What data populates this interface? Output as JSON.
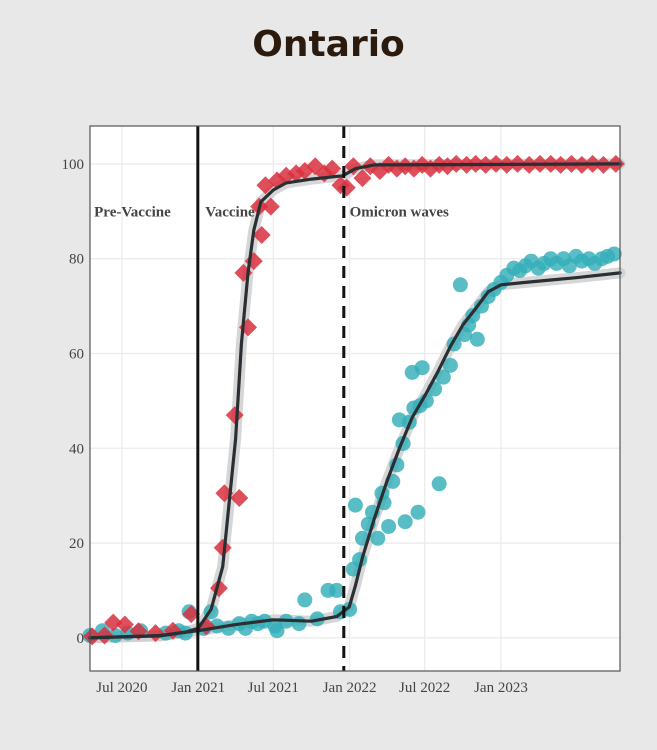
{
  "chart_data": {
    "type": "scatter",
    "title": "Ontario",
    "xlabel": "",
    "ylabel": "",
    "ylim": [
      -7,
      108
    ],
    "xlim": [
      "2020-04-15",
      "2023-10-15"
    ],
    "grid": true,
    "legend": "none",
    "x_ticks": [
      {
        "date": "2020-07-01",
        "label": "Jul 2020"
      },
      {
        "date": "2021-01-01",
        "label": "Jan 2021"
      },
      {
        "date": "2021-07-01",
        "label": "Jul 2021"
      },
      {
        "date": "2022-01-01",
        "label": "Jan 2022"
      },
      {
        "date": "2022-07-01",
        "label": "Jul 2022"
      },
      {
        "date": "2023-01-01",
        "label": "Jan 2023"
      }
    ],
    "y_ticks": [
      0,
      20,
      40,
      60,
      80,
      100
    ],
    "vlines": [
      {
        "date": "2020-12-31",
        "style": "solid"
      },
      {
        "date": "2021-12-18",
        "style": "dashed"
      }
    ],
    "regions": [
      {
        "label": "Pre-Vaccine",
        "date": "2020-04-25",
        "y": 90
      },
      {
        "label": "Vaccine",
        "date": "2021-01-18",
        "y": 90
      },
      {
        "label": "Omicron waves",
        "date": "2022-01-01",
        "y": 90
      }
    ],
    "series": [
      {
        "color": "#d9303e",
        "marker": "diamond",
        "points": [
          [
            "2020-04-20",
            0.3
          ],
          [
            "2020-05-20",
            0.5
          ],
          [
            "2020-06-10",
            3.2
          ],
          [
            "2020-07-08",
            2.8
          ],
          [
            "2020-08-10",
            1.4
          ],
          [
            "2020-09-20",
            1.0
          ],
          [
            "2020-11-01",
            1.5
          ],
          [
            "2020-12-15",
            5.0
          ],
          [
            "2021-01-20",
            2.5
          ],
          [
            "2021-02-20",
            10.5
          ],
          [
            "2021-03-01",
            19.0
          ],
          [
            "2021-03-05",
            30.5
          ],
          [
            "2021-03-30",
            47.0
          ],
          [
            "2021-04-10",
            29.5
          ],
          [
            "2021-04-20",
            77.0
          ],
          [
            "2021-05-01",
            65.5
          ],
          [
            "2021-05-15",
            79.5
          ],
          [
            "2021-05-28",
            91.0
          ],
          [
            "2021-06-03",
            85.0
          ],
          [
            "2021-06-12",
            95.5
          ],
          [
            "2021-06-25",
            91.0
          ],
          [
            "2021-07-10",
            96.5
          ],
          [
            "2021-08-01",
            97.5
          ],
          [
            "2021-08-25",
            98.0
          ],
          [
            "2021-09-15",
            98.5
          ],
          [
            "2021-10-10",
            99.5
          ],
          [
            "2021-11-01",
            98.0
          ],
          [
            "2021-11-20",
            99.0
          ],
          [
            "2021-12-10",
            95.5
          ],
          [
            "2021-12-25",
            95.0
          ],
          [
            "2022-01-10",
            99.5
          ],
          [
            "2022-02-01",
            97.0
          ],
          [
            "2022-02-20",
            99.5
          ],
          [
            "2022-03-15",
            98.5
          ],
          [
            "2022-04-05",
            99.8
          ],
          [
            "2022-04-25",
            99.0
          ],
          [
            "2022-05-15",
            99.5
          ],
          [
            "2022-06-05",
            99.0
          ],
          [
            "2022-06-25",
            99.8
          ],
          [
            "2022-07-15",
            99.0
          ],
          [
            "2022-08-05",
            99.8
          ],
          [
            "2022-08-25",
            99.5
          ],
          [
            "2022-09-15",
            100.0
          ],
          [
            "2022-10-10",
            99.8
          ],
          [
            "2022-11-01",
            100.0
          ],
          [
            "2022-11-25",
            99.8
          ],
          [
            "2022-12-20",
            100.0
          ],
          [
            "2023-01-15",
            99.8
          ],
          [
            "2023-02-10",
            100.0
          ],
          [
            "2023-03-10",
            99.8
          ],
          [
            "2023-04-05",
            100.0
          ],
          [
            "2023-05-01",
            100.0
          ],
          [
            "2023-05-25",
            99.8
          ],
          [
            "2023-06-20",
            100.0
          ],
          [
            "2023-07-15",
            99.8
          ],
          [
            "2023-08-10",
            100.0
          ],
          [
            "2023-09-05",
            99.8
          ],
          [
            "2023-10-05",
            100.0
          ]
        ],
        "trend": [
          [
            "2020-04-15",
            0
          ],
          [
            "2020-10-01",
            0.4
          ],
          [
            "2020-12-01",
            1.2
          ],
          [
            "2021-01-01",
            2.0
          ],
          [
            "2021-02-01",
            6.0
          ],
          [
            "2021-03-01",
            15.0
          ],
          [
            "2021-04-01",
            42.0
          ],
          [
            "2021-04-15",
            62.0
          ],
          [
            "2021-05-01",
            77.0
          ],
          [
            "2021-05-15",
            86.0
          ],
          [
            "2021-06-01",
            92.0
          ],
          [
            "2021-07-01",
            94.5
          ],
          [
            "2021-08-01",
            96.0
          ],
          [
            "2021-10-01",
            96.8
          ],
          [
            "2021-12-15",
            97.5
          ],
          [
            "2022-01-15",
            99.0
          ],
          [
            "2022-03-01",
            99.8
          ],
          [
            "2023-10-15",
            100.0
          ]
        ]
      },
      {
        "color": "#35aeb9",
        "marker": "circle",
        "points": [
          [
            "2020-04-15",
            0.5
          ],
          [
            "2020-05-15",
            1.5
          ],
          [
            "2020-06-15",
            0.5
          ],
          [
            "2020-07-15",
            1.0
          ],
          [
            "2020-08-15",
            1.5
          ],
          [
            "2020-10-15",
            1.0
          ],
          [
            "2020-11-15",
            1.5
          ],
          [
            "2020-12-01",
            1.0
          ],
          [
            "2020-12-10",
            5.5
          ],
          [
            "2021-01-15",
            2.0
          ],
          [
            "2021-02-01",
            5.5
          ],
          [
            "2021-02-15",
            2.5
          ],
          [
            "2021-03-15",
            2.0
          ],
          [
            "2021-04-10",
            3.0
          ],
          [
            "2021-04-25",
            2.0
          ],
          [
            "2021-05-10",
            3.5
          ],
          [
            "2021-05-25",
            3.0
          ],
          [
            "2021-06-10",
            3.5
          ],
          [
            "2021-07-05",
            2.5
          ],
          [
            "2021-07-10",
            1.5
          ],
          [
            "2021-08-01",
            3.5
          ],
          [
            "2021-09-01",
            3.0
          ],
          [
            "2021-09-15",
            8.0
          ],
          [
            "2021-10-15",
            4.0
          ],
          [
            "2021-11-10",
            10.0
          ],
          [
            "2021-12-01",
            10.0
          ],
          [
            "2021-12-10",
            5.5
          ],
          [
            "2022-01-01",
            6.0
          ],
          [
            "2022-01-10",
            14.5
          ],
          [
            "2022-01-15",
            28.0
          ],
          [
            "2022-01-25",
            16.5
          ],
          [
            "2022-02-01",
            21.0
          ],
          [
            "2022-02-15",
            24.0
          ],
          [
            "2022-02-25",
            26.5
          ],
          [
            "2022-03-10",
            21.0
          ],
          [
            "2022-03-20",
            30.5
          ],
          [
            "2022-03-25",
            28.5
          ],
          [
            "2022-04-05",
            23.5
          ],
          [
            "2022-04-15",
            33.0
          ],
          [
            "2022-04-25",
            36.5
          ],
          [
            "2022-05-01",
            46.0
          ],
          [
            "2022-05-10",
            41.0
          ],
          [
            "2022-05-15",
            24.5
          ],
          [
            "2022-05-25",
            45.5
          ],
          [
            "2022-06-01",
            56.0
          ],
          [
            "2022-06-05",
            48.5
          ],
          [
            "2022-06-15",
            26.5
          ],
          [
            "2022-06-20",
            49.0
          ],
          [
            "2022-06-25",
            57.0
          ],
          [
            "2022-07-05",
            50.0
          ],
          [
            "2022-07-25",
            52.5
          ],
          [
            "2022-08-05",
            32.5
          ],
          [
            "2022-08-15",
            55.0
          ],
          [
            "2022-09-01",
            57.5
          ],
          [
            "2022-09-10",
            62.0
          ],
          [
            "2022-09-25",
            74.5
          ],
          [
            "2022-10-05",
            64.0
          ],
          [
            "2022-10-15",
            66.0
          ],
          [
            "2022-10-25",
            68.0
          ],
          [
            "2022-11-05",
            63.0
          ],
          [
            "2022-11-15",
            70.0
          ],
          [
            "2022-12-01",
            72.0
          ],
          [
            "2022-12-15",
            73.5
          ],
          [
            "2023-01-01",
            75.0
          ],
          [
            "2023-01-15",
            76.5
          ],
          [
            "2023-02-01",
            78.0
          ],
          [
            "2023-02-15",
            77.5
          ],
          [
            "2023-03-01",
            78.5
          ],
          [
            "2023-03-15",
            79.5
          ],
          [
            "2023-04-01",
            78.0
          ],
          [
            "2023-04-15",
            79.0
          ],
          [
            "2023-05-01",
            80.0
          ],
          [
            "2023-05-15",
            79.0
          ],
          [
            "2023-06-01",
            80.0
          ],
          [
            "2023-06-15",
            78.5
          ],
          [
            "2023-07-01",
            80.5
          ],
          [
            "2023-07-15",
            79.5
          ],
          [
            "2023-08-01",
            80.0
          ],
          [
            "2023-08-15",
            79.0
          ],
          [
            "2023-09-01",
            80.0
          ],
          [
            "2023-09-15",
            80.5
          ],
          [
            "2023-10-01",
            81.0
          ]
        ],
        "trend": [
          [
            "2020-04-15",
            0
          ],
          [
            "2020-10-01",
            0.5
          ],
          [
            "2021-01-01",
            1.5
          ],
          [
            "2021-04-01",
            2.8
          ],
          [
            "2021-07-01",
            3.8
          ],
          [
            "2021-10-01",
            3.5
          ],
          [
            "2021-12-01",
            4.5
          ],
          [
            "2021-12-31",
            6.5
          ],
          [
            "2022-01-15",
            11.0
          ],
          [
            "2022-02-01",
            17.0
          ],
          [
            "2022-03-01",
            25.0
          ],
          [
            "2022-04-01",
            33.0
          ],
          [
            "2022-05-01",
            40.0
          ],
          [
            "2022-06-01",
            46.5
          ],
          [
            "2022-07-01",
            51.0
          ],
          [
            "2022-08-01",
            56.0
          ],
          [
            "2022-09-01",
            61.5
          ],
          [
            "2022-10-01",
            66.0
          ],
          [
            "2022-11-01",
            69.5
          ],
          [
            "2022-12-01",
            73.0
          ],
          [
            "2023-01-01",
            74.5
          ],
          [
            "2023-03-01",
            75.0
          ],
          [
            "2023-05-01",
            75.5
          ],
          [
            "2023-07-01",
            76.0
          ],
          [
            "2023-10-15",
            77.0
          ]
        ]
      }
    ]
  }
}
